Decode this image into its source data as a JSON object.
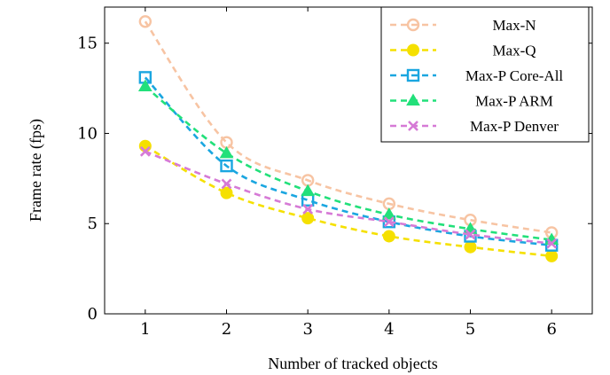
{
  "chart_data": {
    "type": "line",
    "xlabel": "Number of tracked objects",
    "ylabel": "Frame rate (fps)",
    "x": [
      1,
      2,
      3,
      4,
      5,
      6
    ],
    "xlim": [
      0.5,
      6.5
    ],
    "ylim": [
      0,
      17
    ],
    "xticks": [
      1,
      2,
      3,
      4,
      5,
      6
    ],
    "yticks": [
      0,
      5,
      10,
      15
    ],
    "grid": false,
    "legend_position": "top-right",
    "series": [
      {
        "name": "Max-N",
        "values": [
          16.2,
          9.5,
          7.4,
          6.1,
          5.2,
          4.5
        ],
        "color": "#f7c4a3",
        "marker": "open-circle"
      },
      {
        "name": "Max-Q",
        "values": [
          9.3,
          6.7,
          5.3,
          4.3,
          3.7,
          3.2
        ],
        "color": "#f5e000",
        "marker": "filled-circle"
      },
      {
        "name": "Max-P Core-All",
        "values": [
          13.1,
          8.2,
          6.3,
          5.1,
          4.3,
          3.8
        ],
        "color": "#1aa6e0",
        "marker": "open-square"
      },
      {
        "name": "Max-P ARM",
        "values": [
          12.6,
          8.9,
          6.8,
          5.5,
          4.7,
          4.1
        ],
        "color": "#22e07a",
        "marker": "filled-triangle"
      },
      {
        "name": "Max-P Denver",
        "values": [
          9.0,
          7.2,
          5.8,
          5.1,
          4.4,
          3.9
        ],
        "color": "#d67ad6",
        "marker": "cross"
      }
    ]
  }
}
